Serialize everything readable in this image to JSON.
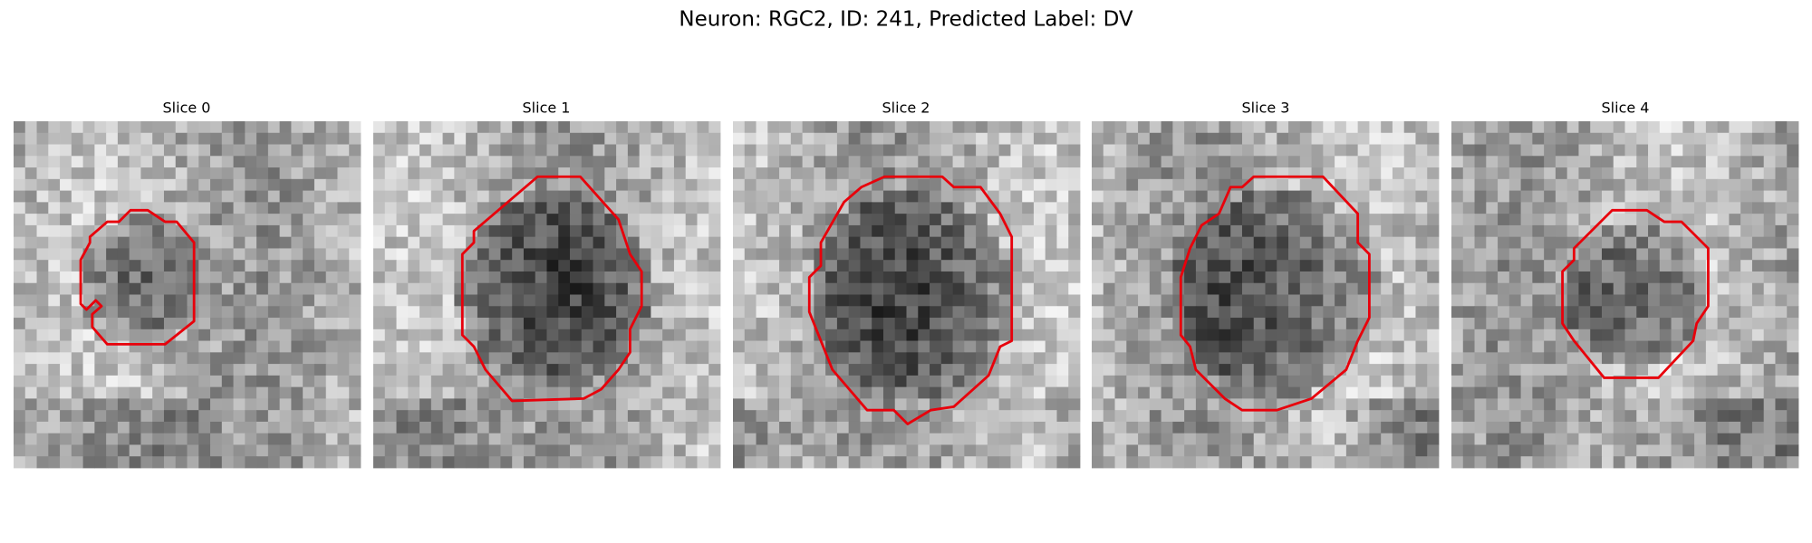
{
  "title": "Neuron: RGC2, ID: 241, Predicted Label: DV",
  "panels": [
    {
      "title": "Slice 0"
    },
    {
      "title": "Slice 1"
    },
    {
      "title": "Slice 2"
    },
    {
      "title": "Slice 3"
    },
    {
      "title": "Slice 4"
    }
  ]
}
